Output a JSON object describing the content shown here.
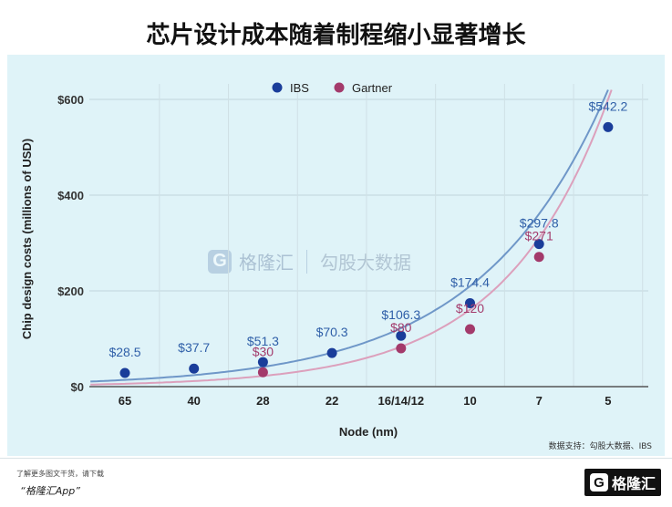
{
  "title": "芯片设计成本随着制程缩小显著增长",
  "source": "数据支持：勾股大数据、IBS",
  "footer": {
    "line1": "了解更多图文干货，请下载",
    "line2": "“格隆汇App”",
    "brand": "格隆汇",
    "brand_letter": "G"
  },
  "watermark": {
    "brand": "格隆汇",
    "brand_letter": "G",
    "partner": "勾股大数据"
  },
  "colors": {
    "background": "#dff3f8",
    "ibs": "#1a3d9a",
    "gartner": "#a33a6b",
    "ibs_curve": "#6f97c8",
    "gartner_curve": "#dca0bc",
    "ibs_label": "#2f5fa8",
    "gartner_label": "#a33a6b"
  },
  "chart_data": {
    "type": "scatter",
    "xlabel": "Node (nm)",
    "ylabel": "Chip design costs (millions of USD)",
    "categories": [
      "65",
      "40",
      "28",
      "22",
      "16/14/12",
      "10",
      "7",
      "5"
    ],
    "ylim": [
      0,
      600
    ],
    "yticks": [
      0,
      200,
      400,
      600
    ],
    "ytick_labels": [
      "$0",
      "$200",
      "$400",
      "$600"
    ],
    "grid": true,
    "legend_position": "top-left",
    "series": [
      {
        "name": "IBS",
        "values": [
          28.5,
          37.7,
          51.3,
          70.3,
          106.3,
          174.4,
          297.8,
          542.2
        ],
        "labels": [
          "$28.5",
          "$37.7",
          "$51.3",
          "$70.3",
          "$106.3",
          "$174.4",
          "$297.8",
          "$542.2"
        ]
      },
      {
        "name": "Gartner",
        "values": [
          null,
          null,
          30,
          null,
          80,
          120,
          271,
          null
        ],
        "labels": [
          "",
          "",
          "$30",
          "",
          "$80",
          "$120",
          "$271",
          ""
        ]
      }
    ]
  }
}
